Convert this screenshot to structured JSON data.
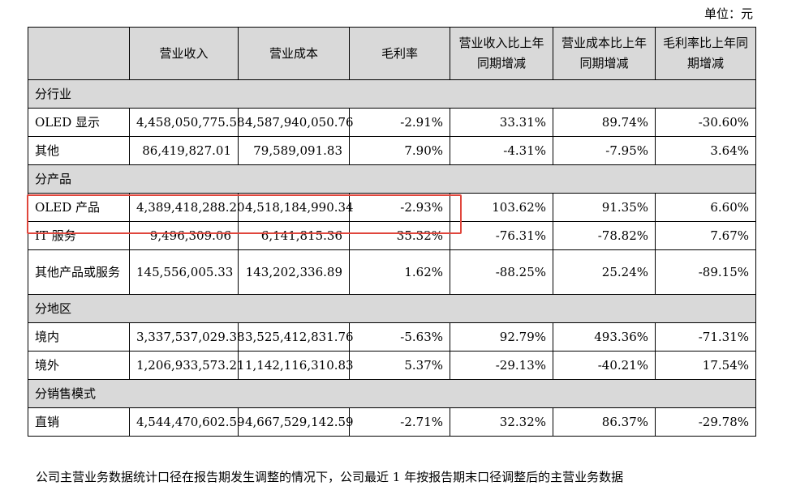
{
  "unit_label": "单位：元",
  "headers": [
    "",
    "营业收入",
    "营业成本",
    "毛利率",
    "营业收入比上年同期增减",
    "营业成本比上年同期增减",
    "毛利率比上年同期增减"
  ],
  "sections": [
    {
      "title": "分行业",
      "rows": [
        [
          "OLED 显示",
          "4,458,050,775.58",
          "4,587,940,050.76",
          "-2.91%",
          "33.31%",
          "89.74%",
          "-30.60%"
        ],
        [
          "其他",
          "86,419,827.01",
          "79,589,091.83",
          "7.90%",
          "-4.31%",
          "-7.95%",
          "3.64%"
        ]
      ]
    },
    {
      "title": "分产品",
      "rows": [
        [
          "OLED 产品",
          "4,389,418,288.20",
          "4,518,184,990.34",
          "-2.93%",
          "103.62%",
          "91.35%",
          "6.60%"
        ],
        [
          "IT 服务",
          "9,496,309.06",
          "6,141,815.36",
          "35.32%",
          "-76.31%",
          "-78.82%",
          "7.67%"
        ],
        [
          "其他产品或服务",
          "145,556,005.33",
          "143,202,336.89",
          "1.62%",
          "-88.25%",
          "25.24%",
          "-89.15%"
        ]
      ]
    },
    {
      "title": "分地区",
      "rows": [
        [
          "境内",
          "3,337,537,029.38",
          "3,525,412,831.76",
          "-5.63%",
          "92.79%",
          "493.36%",
          "-71.31%"
        ],
        [
          "境外",
          "1,206,933,573.21",
          "1,142,116,310.83",
          "5.37%",
          "-29.13%",
          "-40.21%",
          "17.54%"
        ]
      ]
    },
    {
      "title": "分销售模式",
      "rows": [
        [
          "直销",
          "4,544,470,602.59",
          "4,667,529,142.59",
          "-2.71%",
          "32.32%",
          "86.37%",
          "-29.78%"
        ]
      ]
    }
  ],
  "footnote": "公司主营业务数据统计口径在报告期发生调整的情况下，公司最近 1 年按报告期末口径调整后的主营业务数据"
}
